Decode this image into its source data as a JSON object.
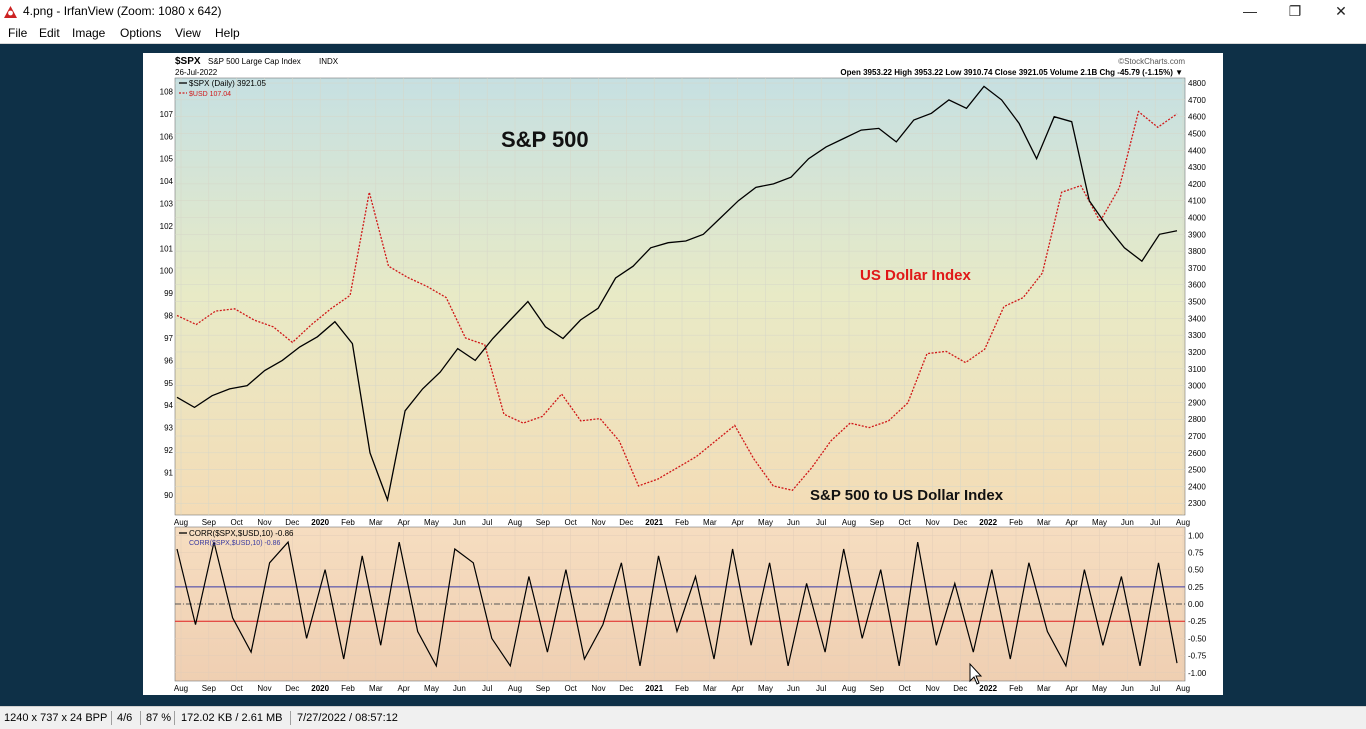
{
  "window": {
    "title": "4.png - IrfanView (Zoom: 1080 x 642)",
    "minimize_glyph": "—",
    "maximize_glyph": "❐",
    "close_glyph": "✕"
  },
  "menu": [
    "File",
    "Edit",
    "Image",
    "Options",
    "View",
    "Help"
  ],
  "status": {
    "dimensions": "1240 x 737 x 24 BPP",
    "position": "4/6",
    "zoom": "87 %",
    "size": "172.02 KB / 2.61 MB",
    "datetime": "7/27/2022 / 08:57:12"
  },
  "chart_header": {
    "symbol": "$SPX",
    "name": "S&P 500 Large Cap Index",
    "exchange": "INDX",
    "date": "26-Jul-2022",
    "credit": "©StockCharts.com",
    "quote": "Open 3953.22  High 3953.22  Low 3910.74  Close 3921.05  Volume 2.1B  Chg -45.79 (-1.15%) ▼",
    "legend_spx": "$SPX (Daily) 3921.05",
    "legend_usd": "$USD 107.04"
  },
  "annotations": {
    "sp500": "S&P 500",
    "usd": "US Dollar Index",
    "ratio": "S&P 500 to US Dollar Index"
  },
  "lower_panel": {
    "legend_corr": "CORR($SPX,$USD,10) -0.86",
    "legend_corr2": "CORR($SPX,$USD,10) -0.86"
  },
  "chart_data": [
    {
      "type": "line",
      "title": "$SPX S&P 500 Large Cap Index INDX",
      "x_tick_labels": [
        "Aug",
        "Sep",
        "Oct",
        "Nov",
        "Dec",
        "2020",
        "Feb",
        "Mar",
        "Apr",
        "May",
        "Jun",
        "Jul",
        "Aug",
        "Sep",
        "Oct",
        "Nov",
        "Dec",
        "2021",
        "Feb",
        "Mar",
        "Apr",
        "May",
        "Jun",
        "Jul",
        "Aug",
        "Sep",
        "Oct",
        "Nov",
        "Dec",
        "2022",
        "Feb",
        "Mar",
        "Apr",
        "May",
        "Jun",
        "Jul",
        "Aug"
      ],
      "left_axis_ticks": [
        90,
        91,
        92,
        93,
        94,
        95,
        96,
        97,
        98,
        99,
        100,
        101,
        102,
        103,
        104,
        105,
        106,
        107,
        108
      ],
      "right_axis_ticks": [
        2300,
        2400,
        2500,
        2600,
        2700,
        2800,
        2900,
        3000,
        3100,
        3200,
        3300,
        3400,
        3500,
        3600,
        3700,
        3800,
        3900,
        4000,
        4100,
        4200,
        4300,
        4400,
        4500,
        4600,
        4700,
        4800
      ],
      "series": [
        {
          "name": "$SPX",
          "axis": "right",
          "color": "#000000",
          "values": [
            2930,
            2870,
            2940,
            2980,
            3000,
            3090,
            3150,
            3230,
            3290,
            3380,
            3250,
            2600,
            2320,
            2850,
            2980,
            3080,
            3220,
            3150,
            3280,
            3390,
            3500,
            3350,
            3280,
            3390,
            3460,
            3640,
            3710,
            3820,
            3850,
            3860,
            3900,
            4000,
            4100,
            4180,
            4200,
            4240,
            4350,
            4420,
            4470,
            4520,
            4530,
            4450,
            4580,
            4620,
            4700,
            4650,
            4780,
            4700,
            4560,
            4350,
            4600,
            4570,
            4100,
            3950,
            3820,
            3740,
            3900,
            3921
          ]
        },
        {
          "name": "$USD",
          "axis": "left",
          "color": "#d01818",
          "values": [
            98.0,
            97.6,
            98.2,
            98.3,
            97.8,
            97.5,
            96.8,
            97.6,
            98.3,
            98.9,
            103.5,
            100.2,
            99.7,
            99.3,
            98.8,
            97.0,
            96.7,
            93.6,
            93.2,
            93.5,
            94.5,
            93.3,
            93.4,
            92.4,
            90.4,
            90.7,
            91.2,
            91.7,
            92.4,
            93.1,
            91.6,
            90.4,
            90.2,
            91.2,
            92.4,
            93.2,
            93.0,
            93.3,
            94.1,
            96.3,
            96.4,
            95.9,
            96.5,
            98.4,
            98.8,
            99.9,
            103.5,
            103.8,
            102.2,
            103.7,
            107.1,
            106.4,
            107.0
          ]
        }
      ]
    },
    {
      "type": "line",
      "title": "CORR($SPX,$USD,10)",
      "y_ticks": [
        -1.0,
        -0.75,
        -0.5,
        -0.25,
        0.0,
        0.25,
        0.5,
        0.75,
        1.0
      ],
      "reference_lines": [
        0.25,
        0.0,
        -0.25
      ],
      "last_value": -0.86,
      "series": [
        {
          "name": "CORR($SPX,$USD,10)",
          "color": "#000000",
          "values": [
            0.8,
            -0.3,
            0.9,
            -0.2,
            -0.7,
            0.6,
            0.9,
            -0.5,
            0.5,
            -0.8,
            0.7,
            -0.6,
            0.9,
            -0.4,
            -0.9,
            0.8,
            0.6,
            -0.5,
            -0.9,
            0.4,
            -0.7,
            0.5,
            -0.8,
            -0.3,
            0.6,
            -0.9,
            0.7,
            -0.4,
            0.4,
            -0.8,
            0.8,
            -0.6,
            0.6,
            -0.9,
            0.3,
            -0.7,
            0.8,
            -0.5,
            0.5,
            -0.9,
            0.9,
            -0.6,
            0.3,
            -0.7,
            0.5,
            -0.8,
            0.6,
            -0.4,
            -0.9,
            0.5,
            -0.6,
            0.4,
            -0.9,
            0.6,
            -0.86
          ]
        }
      ]
    }
  ]
}
